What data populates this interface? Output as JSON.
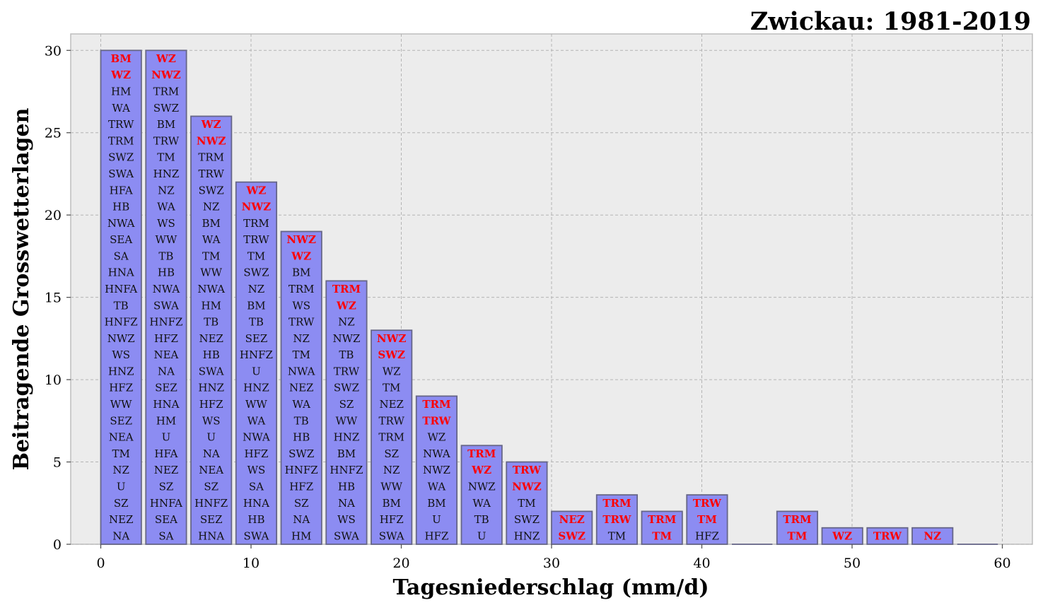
{
  "chart_data": {
    "type": "bar",
    "title": "Zwickau: 1981-2019",
    "xlabel": "Tagesniederschlag (mm/d)",
    "ylabel": "Beitragende Grosswetterlagen",
    "xlim": [
      -2,
      62
    ],
    "ylim": [
      0,
      31
    ],
    "xticks": [
      0,
      10,
      20,
      30,
      40,
      50,
      60
    ],
    "yticks": [
      0,
      5,
      10,
      15,
      20,
      25,
      30
    ],
    "grid": true,
    "bar_width": 2.7,
    "bar_color": "#8c8cf2",
    "bar_edge_color": "#666688",
    "highlight_color": "#ff0000",
    "background_color": "#ececec",
    "bars": [
      {
        "x": 0,
        "value": 30,
        "highlighted": 2,
        "labels": [
          "BM",
          "WZ",
          "HM",
          "WA",
          "TRW",
          "TRM",
          "SWZ",
          "SWA",
          "HFA",
          "HB",
          "NWA",
          "SEA",
          "SA",
          "HNA",
          "HNFA",
          "TB",
          "HNFZ",
          "NWZ",
          "WS",
          "HNZ",
          "HFZ",
          "WW",
          "SEZ",
          "NEA",
          "TM",
          "NZ",
          "U",
          "SZ",
          "NEZ",
          "NA"
        ]
      },
      {
        "x": 3,
        "value": 30,
        "highlighted": 2,
        "labels": [
          "WZ",
          "NWZ",
          "TRM",
          "SWZ",
          "BM",
          "TRW",
          "TM",
          "HNZ",
          "NZ",
          "WA",
          "WS",
          "WW",
          "TB",
          "HB",
          "NWA",
          "SWA",
          "HNFZ",
          "HFZ",
          "NEA",
          "NA",
          "SEZ",
          "HNA",
          "HM",
          "U",
          "HFA",
          "NEZ",
          "SZ",
          "HNFA",
          "SEA",
          "SA"
        ]
      },
      {
        "x": 6,
        "value": 26,
        "highlighted": 2,
        "labels": [
          "WZ",
          "NWZ",
          "TRM",
          "TRW",
          "SWZ",
          "NZ",
          "BM",
          "WA",
          "TM",
          "WW",
          "NWA",
          "HM",
          "TB",
          "NEZ",
          "HB",
          "SWA",
          "HNZ",
          "HFZ",
          "WS",
          "U",
          "NA",
          "NEA",
          "SZ",
          "HNFZ",
          "SEZ",
          "HNA"
        ]
      },
      {
        "x": 9,
        "value": 22,
        "highlighted": 2,
        "labels": [
          "WZ",
          "NWZ",
          "TRM",
          "TRW",
          "TM",
          "SWZ",
          "NZ",
          "BM",
          "TB",
          "SEZ",
          "HNFZ",
          "U",
          "HNZ",
          "WW",
          "WA",
          "NWA",
          "HFZ",
          "WS",
          "SA",
          "HNA",
          "HB",
          "SWA"
        ]
      },
      {
        "x": 12,
        "value": 19,
        "highlighted": 2,
        "labels": [
          "NWZ",
          "WZ",
          "BM",
          "TRM",
          "WS",
          "TRW",
          "NZ",
          "TM",
          "NWA",
          "NEZ",
          "WA",
          "TB",
          "HB",
          "SWZ",
          "HNFZ",
          "HFZ",
          "SZ",
          "NA",
          "HM"
        ]
      },
      {
        "x": 15,
        "value": 16,
        "highlighted": 2,
        "labels": [
          "TRM",
          "WZ",
          "NZ",
          "NWZ",
          "TB",
          "TRW",
          "SWZ",
          "SZ",
          "WW",
          "HNZ",
          "BM",
          "HNFZ",
          "HB",
          "NA",
          "WS",
          "SWA"
        ]
      },
      {
        "x": 18,
        "value": 13,
        "highlighted": 2,
        "labels": [
          "NWZ",
          "SWZ",
          "WZ",
          "TM",
          "NEZ",
          "TRW",
          "TRM",
          "SZ",
          "NZ",
          "WW",
          "BM",
          "HFZ",
          "SWA"
        ]
      },
      {
        "x": 21,
        "value": 9,
        "highlighted": 2,
        "labels": [
          "TRM",
          "TRW",
          "WZ",
          "NWA",
          "NWZ",
          "WA",
          "BM",
          "U",
          "HFZ"
        ]
      },
      {
        "x": 24,
        "value": 6,
        "highlighted": 2,
        "labels": [
          "TRM",
          "WZ",
          "NWZ",
          "WA",
          "TB",
          "U"
        ]
      },
      {
        "x": 27,
        "value": 5,
        "highlighted": 2,
        "labels": [
          "TRW",
          "NWZ",
          "TM",
          "SWZ",
          "HNZ"
        ]
      },
      {
        "x": 30,
        "value": 2,
        "highlighted": 2,
        "labels": [
          "NEZ",
          "SWZ"
        ]
      },
      {
        "x": 33,
        "value": 3,
        "highlighted": 2,
        "labels": [
          "TRM",
          "TRW",
          "TM"
        ]
      },
      {
        "x": 36,
        "value": 2,
        "highlighted": 2,
        "labels": [
          "TRM",
          "TM"
        ]
      },
      {
        "x": 39,
        "value": 3,
        "highlighted": 2,
        "labels": [
          "TRW",
          "TM",
          "HFZ"
        ]
      },
      {
        "x": 42,
        "value": 0,
        "highlighted": 0,
        "labels": []
      },
      {
        "x": 45,
        "value": 2,
        "highlighted": 2,
        "labels": [
          "TRM",
          "TM"
        ]
      },
      {
        "x": 48,
        "value": 1,
        "highlighted": 1,
        "labels": [
          "WZ"
        ]
      },
      {
        "x": 51,
        "value": 1,
        "highlighted": 1,
        "labels": [
          "TRW"
        ]
      },
      {
        "x": 54,
        "value": 1,
        "highlighted": 1,
        "labels": [
          "NZ"
        ]
      },
      {
        "x": 57,
        "value": 0,
        "highlighted": 0,
        "labels": []
      }
    ]
  }
}
